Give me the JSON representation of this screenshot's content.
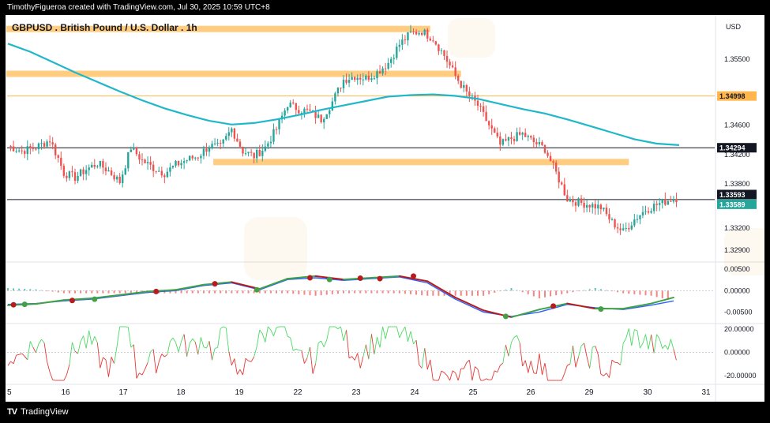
{
  "caption": "TimothyFigueroa created with TradingView.com, Jul 30, 2025 10:59 UTC+8",
  "brand": {
    "logo": "TV",
    "name": "TradingView"
  },
  "colors": {
    "candle_up": "#26a69a",
    "candle_down": "#ef5350",
    "ma": "#1fb8c9",
    "zone": "#ffcc80",
    "price_badge_dark": "#131722",
    "price_badge_orange": "#ffb74d",
    "price_badge_green": "#26a69a",
    "macd_line": "#2962ff",
    "signal_up": "#43a047",
    "signal_down": "#b71c1c",
    "osc_up": "#4cd964",
    "osc_down": "#e53935"
  },
  "chart_data": {
    "type": "candlestick",
    "title": "GBPUSD . British Pound / U.S. Dollar . 1h",
    "currency": "USD",
    "x_ticks": [
      "5",
      "16",
      "17",
      "18",
      "19",
      "22",
      "23",
      "24",
      "25",
      "26",
      "29",
      "30",
      "31"
    ],
    "y_ticks": [
      "1.35500",
      "1.34600",
      "1.34200",
      "1.33800",
      "1.33500",
      "1.33200",
      "1.32900"
    ],
    "ylim": [
      1.3275,
      1.3595
    ],
    "moving_average": {
      "x": [
        0,
        8,
        16,
        24,
        32,
        40,
        48,
        56,
        64,
        72,
        80,
        88,
        96,
        104,
        112,
        120,
        128,
        136,
        144,
        152,
        160,
        168,
        176,
        184,
        192,
        200,
        208,
        216,
        224,
        232,
        240
      ],
      "y": [
        1.3571,
        1.356,
        1.3546,
        1.3532,
        1.3519,
        1.3506,
        1.3494,
        1.3483,
        1.3474,
        1.3466,
        1.3461,
        1.3463,
        1.3468,
        1.3474,
        1.3481,
        1.3487,
        1.3493,
        1.3499,
        1.3501,
        1.3502,
        1.35,
        1.3496,
        1.3489,
        1.3482,
        1.3476,
        1.3468,
        1.3459,
        1.345,
        1.3441,
        1.3435,
        1.3433
      ]
    },
    "close_path": {
      "x": [
        0,
        5,
        10,
        15,
        18,
        20,
        24,
        28,
        32,
        36,
        40,
        44,
        48,
        52,
        56,
        60,
        64,
        68,
        72,
        76,
        80,
        84,
        88,
        92,
        96,
        100,
        104,
        108,
        112,
        116,
        120,
        124,
        128,
        132,
        136,
        140,
        144,
        148,
        152,
        156,
        160,
        164,
        168,
        172,
        176,
        180,
        184,
        188,
        192,
        196,
        200,
        204,
        208,
        212,
        216,
        220,
        224,
        228,
        232,
        236,
        238
      ],
      "y": [
        1.3432,
        1.3425,
        1.343,
        1.344,
        1.3415,
        1.3395,
        1.3389,
        1.34,
        1.3408,
        1.3398,
        1.3383,
        1.343,
        1.3412,
        1.3402,
        1.3395,
        1.3406,
        1.3413,
        1.3418,
        1.3432,
        1.343,
        1.3455,
        1.3425,
        1.3418,
        1.343,
        1.3455,
        1.3489,
        1.3482,
        1.3478,
        1.3468,
        1.3492,
        1.3522,
        1.3527,
        1.3524,
        1.3532,
        1.3545,
        1.357,
        1.3585,
        1.3588,
        1.3578,
        1.3555,
        1.3527,
        1.3504,
        1.3487,
        1.346,
        1.3433,
        1.3442,
        1.3448,
        1.3437,
        1.3428,
        1.3395,
        1.336,
        1.3355,
        1.3352,
        1.3348,
        1.3328,
        1.3315,
        1.3332,
        1.3345,
        1.3352,
        1.3358,
        1.3361
      ]
    },
    "candles_per_day": 24,
    "horizontal_lines": [
      1.34294,
      1.33589
    ],
    "resistance_line": 1.34998,
    "zones": [
      {
        "y": 1.3591,
        "x_start": 0,
        "x_end": 151
      },
      {
        "y": 1.353,
        "x_start": 0,
        "x_end": 162
      },
      {
        "y": 1.341,
        "x_start": 74,
        "x_end": 222
      }
    ],
    "price_labels": [
      {
        "value": "1.34998",
        "style": "orange"
      },
      {
        "value": "1.34294",
        "style": "dark"
      },
      {
        "value": "1.33593",
        "style": "dark"
      },
      {
        "value": "1.33589",
        "style": "green"
      }
    ],
    "macd": {
      "y_ticks": [
        "0.00500",
        "0.00000",
        "-0.00500"
      ],
      "ylim": [
        -0.0075,
        0.0065
      ],
      "x": [
        0,
        10,
        20,
        30,
        40,
        50,
        60,
        70,
        80,
        90,
        100,
        110,
        120,
        130,
        140,
        150,
        160,
        170,
        180,
        190,
        200,
        210,
        220,
        230,
        238
      ],
      "macd": [
        -0.0032,
        -0.003,
        -0.0024,
        -0.002,
        -0.0012,
        -0.0004,
        0.0,
        0.0012,
        0.0018,
        0.0002,
        0.0026,
        0.003,
        0.0024,
        0.0028,
        0.0032,
        0.0018,
        -0.002,
        -0.005,
        -0.006,
        -0.005,
        -0.0032,
        -0.004,
        -0.0044,
        -0.0034,
        -0.0024
      ],
      "signal": [
        -0.0034,
        -0.0031,
        -0.0022,
        -0.0018,
        -0.001,
        -0.0002,
        0.0002,
        0.0014,
        0.002,
        0.0004,
        0.0028,
        0.0034,
        0.0026,
        0.003,
        0.0034,
        0.0022,
        -0.0016,
        -0.0046,
        -0.0062,
        -0.0044,
        -0.003,
        -0.0042,
        -0.0042,
        -0.003,
        -0.0016
      ],
      "crossovers": [
        {
          "x": 2,
          "y": -0.0033,
          "dir": "down"
        },
        {
          "x": 6,
          "y": -0.0032,
          "dir": "up"
        },
        {
          "x": 23,
          "y": -0.0023,
          "dir": "down"
        },
        {
          "x": 31,
          "y": -0.002,
          "dir": "up"
        },
        {
          "x": 53,
          "y": -0.0002,
          "dir": "down"
        },
        {
          "x": 74,
          "y": 0.0016,
          "dir": "down"
        },
        {
          "x": 89,
          "y": 0.0002,
          "dir": "up"
        },
        {
          "x": 108,
          "y": 0.003,
          "dir": "down"
        },
        {
          "x": 115,
          "y": 0.0026,
          "dir": "up"
        },
        {
          "x": 126,
          "y": 0.0029,
          "dir": "down"
        },
        {
          "x": 133,
          "y": 0.0028,
          "dir": "down"
        },
        {
          "x": 145,
          "y": 0.0034,
          "dir": "down"
        },
        {
          "x": 178,
          "y": -0.006,
          "dir": "up"
        },
        {
          "x": 195,
          "y": -0.0036,
          "dir": "down"
        },
        {
          "x": 212,
          "y": -0.0043,
          "dir": "up"
        }
      ]
    },
    "oscillator": {
      "y_ticks": [
        "20.00000",
        "0.00000",
        "-20.00000"
      ],
      "ylim": [
        -26,
        24
      ],
      "length": 240
    }
  }
}
